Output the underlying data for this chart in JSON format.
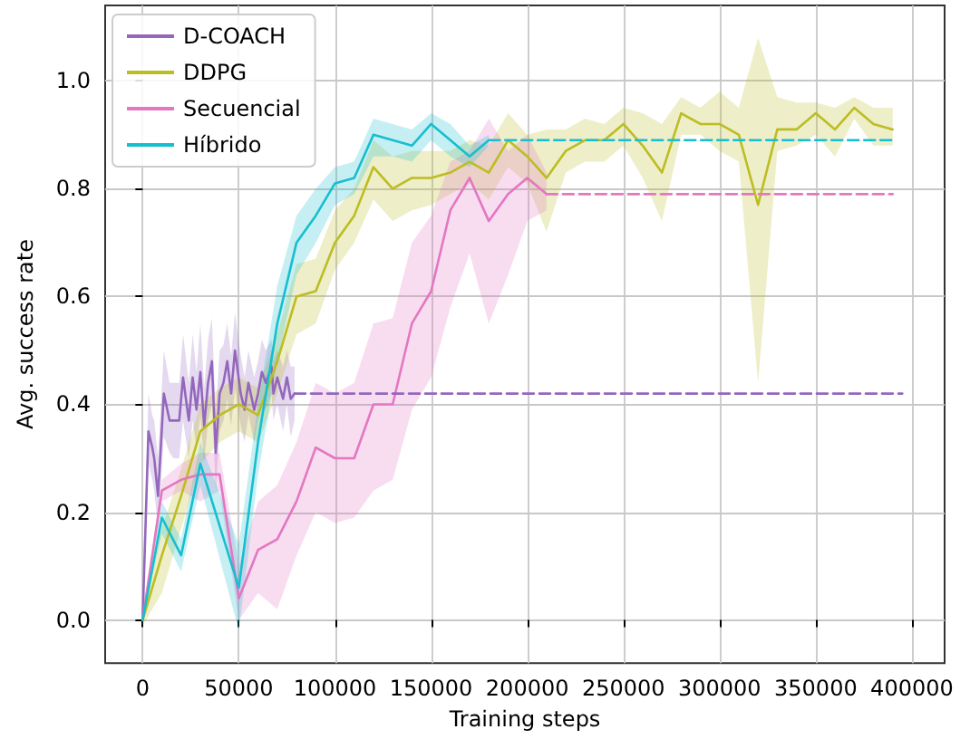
{
  "chart_data": {
    "type": "line",
    "xlabel": "Training steps",
    "ylabel": "Avg. success rate",
    "xlim": [
      -19500,
      417000
    ],
    "xticks": [
      0,
      50000,
      100000,
      150000,
      200000,
      250000,
      300000,
      350000,
      400000
    ],
    "ylim": [
      -0.08,
      1.14
    ],
    "yticks": [
      {
        "value": 0,
        "label": "0.0"
      },
      0.2,
      0.4,
      0.6,
      0.8,
      {
        "value": 1,
        "label": "1.0"
      }
    ],
    "grid": true,
    "legend": "top left",
    "marker": "none",
    "line_style": "solid",
    "series": [
      {
        "name": "D-COACH",
        "color": "#9467bd",
        "x": [
          0,
          3000,
          5000,
          6000,
          8000,
          11000,
          14000,
          16000,
          19000,
          21000,
          24000,
          26000,
          28000,
          30000,
          32000,
          34000,
          36000,
          38000,
          40000,
          42000,
          44000,
          46000,
          48000,
          51000,
          53000,
          55000,
          58000,
          60000,
          62000,
          64000,
          67000,
          68000,
          70000,
          73000,
          75000,
          77000,
          79000
        ],
        "values": [
          0,
          0.35,
          0.32,
          0.3,
          0.23,
          0.42,
          0.37,
          0.37,
          0.37,
          0.45,
          0.37,
          0.45,
          0.39,
          0.46,
          0.36,
          0.44,
          0.48,
          0.31,
          0.42,
          0.44,
          0.48,
          0.42,
          0.5,
          0.42,
          0.39,
          0.44,
          0.39,
          0.42,
          0.46,
          0.44,
          0.47,
          0.42,
          0.45,
          0.41,
          0.45,
          0.41,
          0.42
        ],
        "lower": [
          0,
          0.29,
          0.26,
          0.24,
          0.17,
          0.34,
          0.31,
          0.3,
          0.3,
          0.37,
          0.3,
          0.37,
          0.32,
          0.38,
          0.29,
          0.37,
          0.4,
          0.24,
          0.35,
          0.37,
          0.41,
          0.36,
          0.43,
          0.36,
          0.33,
          0.38,
          0.33,
          0.37,
          0.4,
          0.39,
          0.42,
          0.37,
          0.4,
          0.35,
          0.4,
          0.34,
          0.37
        ],
        "upper": [
          0,
          0.42,
          0.38,
          0.37,
          0.3,
          0.5,
          0.44,
          0.44,
          0.44,
          0.53,
          0.44,
          0.53,
          0.46,
          0.55,
          0.43,
          0.52,
          0.56,
          0.38,
          0.5,
          0.51,
          0.55,
          0.49,
          0.57,
          0.49,
          0.45,
          0.5,
          0.45,
          0.48,
          0.52,
          0.5,
          0.52,
          0.48,
          0.5,
          0.47,
          0.5,
          0.47,
          0.47
        ]
      },
      {
        "name": "DDPG",
        "color": "#bcbd22",
        "x": [
          0,
          10000,
          20000,
          30000,
          40000,
          50000,
          60000,
          70000,
          80000,
          90000,
          100000,
          110000,
          120000,
          130000,
          140000,
          150000,
          160000,
          170000,
          180000,
          190000,
          200000,
          210000,
          220000,
          230000,
          240000,
          250000,
          260000,
          270000,
          280000,
          290000,
          300000,
          310000,
          320000,
          330000,
          340000,
          350000,
          360000,
          370000,
          380000,
          390000
        ],
        "values": [
          0,
          0.12,
          0.23,
          0.35,
          0.38,
          0.4,
          0.38,
          0.48,
          0.6,
          0.61,
          0.7,
          0.75,
          0.84,
          0.8,
          0.82,
          0.82,
          0.83,
          0.85,
          0.83,
          0.89,
          0.86,
          0.82,
          0.87,
          0.89,
          0.89,
          0.92,
          0.88,
          0.83,
          0.94,
          0.92,
          0.92,
          0.9,
          0.77,
          0.91,
          0.91,
          0.94,
          0.91,
          0.95,
          0.92,
          0.91
        ],
        "lower": [
          -0.01,
          0.05,
          0.17,
          0.29,
          0.33,
          0.35,
          0.33,
          0.42,
          0.53,
          0.55,
          0.65,
          0.7,
          0.78,
          0.74,
          0.76,
          0.77,
          0.79,
          0.81,
          0.78,
          0.84,
          0.81,
          0.72,
          0.83,
          0.85,
          0.85,
          0.88,
          0.82,
          0.74,
          0.9,
          0.9,
          0.87,
          0.85,
          0.44,
          0.87,
          0.88,
          0.9,
          0.86,
          0.93,
          0.88,
          0.88
        ],
        "upper": [
          0.03,
          0.17,
          0.28,
          0.4,
          0.43,
          0.45,
          0.43,
          0.53,
          0.66,
          0.67,
          0.76,
          0.8,
          0.89,
          0.86,
          0.87,
          0.87,
          0.87,
          0.89,
          0.88,
          0.94,
          0.9,
          0.91,
          0.91,
          0.93,
          0.92,
          0.95,
          0.94,
          0.92,
          0.97,
          0.95,
          0.98,
          0.95,
          1.08,
          0.97,
          0.96,
          0.96,
          0.95,
          0.97,
          0.95,
          0.95
        ]
      },
      {
        "name": "Secuencial",
        "color": "#e377c2",
        "x": [
          0,
          10000,
          20000,
          30000,
          40000,
          50000,
          60000,
          70000,
          80000,
          90000,
          100000,
          110000,
          120000,
          130000,
          140000,
          150000,
          160000,
          170000,
          180000,
          190000,
          200000,
          210000
        ],
        "values": [
          0,
          0.24,
          0.26,
          0.27,
          0.27,
          0.04,
          0.13,
          0.15,
          0.22,
          0.32,
          0.3,
          0.3,
          0.4,
          0.4,
          0.55,
          0.61,
          0.76,
          0.82,
          0.74,
          0.79,
          0.82,
          0.79
        ],
        "lower": [
          0,
          0.22,
          0.24,
          0.22,
          0.24,
          0.0,
          0.05,
          0.02,
          0.12,
          0.2,
          0.18,
          0.19,
          0.24,
          0.26,
          0.39,
          0.45,
          0.58,
          0.68,
          0.55,
          0.64,
          0.74,
          0.76
        ],
        "upper": [
          0,
          0.26,
          0.29,
          0.31,
          0.31,
          0.1,
          0.22,
          0.25,
          0.33,
          0.44,
          0.42,
          0.44,
          0.55,
          0.56,
          0.7,
          0.75,
          0.85,
          0.87,
          0.93,
          0.87,
          0.9,
          0.83
        ]
      },
      {
        "name": "Híbrido",
        "color": "#17becf",
        "x": [
          0,
          10000,
          20000,
          30000,
          50000,
          60000,
          70000,
          80000,
          90000,
          100000,
          110000,
          120000,
          130000,
          140000,
          150000,
          160000,
          170000,
          180000
        ],
        "values": [
          0,
          0.19,
          0.12,
          0.29,
          0.06,
          0.33,
          0.55,
          0.7,
          0.75,
          0.81,
          0.82,
          0.9,
          0.89,
          0.88,
          0.92,
          0.89,
          0.86,
          0.89
        ],
        "lower": [
          0,
          0.16,
          0.09,
          0.25,
          -0.02,
          0.27,
          0.48,
          0.64,
          0.7,
          0.77,
          0.79,
          0.86,
          0.86,
          0.85,
          0.89,
          0.86,
          0.84,
          0.88
        ],
        "upper": [
          0,
          0.22,
          0.15,
          0.33,
          0.14,
          0.4,
          0.62,
          0.75,
          0.8,
          0.84,
          0.85,
          0.93,
          0.92,
          0.91,
          0.94,
          0.92,
          0.88,
          0.9
        ]
      },
      {
        "color": "#9467bd",
        "line_style": "dashed",
        "x": [
          79000,
          395000
        ],
        "values": [
          0.42,
          0.42
        ]
      },
      {
        "color": "#17becf",
        "line_style": "dashed",
        "x": [
          180000,
          390000
        ],
        "values": [
          0.89,
          0.89
        ]
      },
      {
        "color": "#e377c2",
        "line_style": "dashed",
        "x": [
          210000,
          390000
        ],
        "values": [
          0.79,
          0.79
        ]
      }
    ]
  }
}
